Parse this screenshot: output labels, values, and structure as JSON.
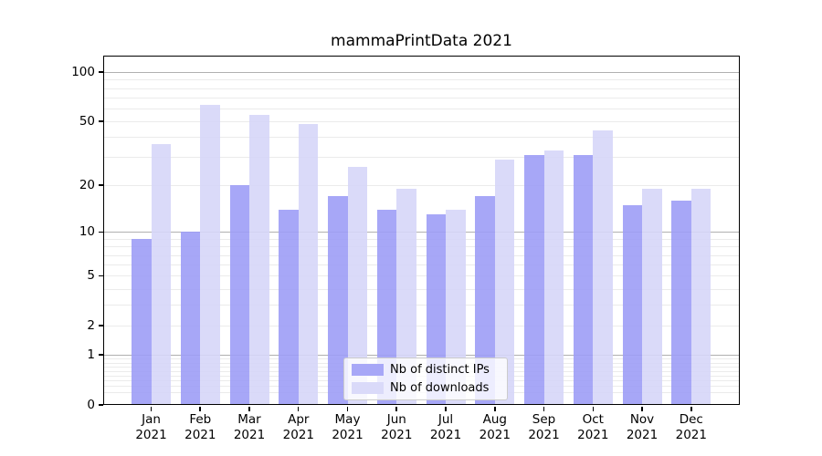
{
  "chart_data": {
    "type": "bar",
    "title": "mammaPrintData 2021",
    "categories": [
      "Jan",
      "Feb",
      "Mar",
      "Apr",
      "May",
      "Jun",
      "Jul",
      "Aug",
      "Sep",
      "Oct",
      "Nov",
      "Dec"
    ],
    "xlabel_year": "2021",
    "series": [
      {
        "name": "Nb of distinct IPs",
        "values": [
          9,
          10,
          20,
          14,
          17,
          14,
          13,
          17,
          31,
          31,
          15,
          16
        ]
      },
      {
        "name": "Nb of downloads",
        "values": [
          36,
          63,
          55,
          48,
          26,
          19,
          14,
          29,
          33,
          44,
          19,
          19
        ]
      }
    ],
    "yscale": "log(1+y)",
    "ylim": [
      0,
      127
    ],
    "yticks": [
      {
        "v": 0,
        "label": "0"
      },
      {
        "v": 1,
        "label": "1"
      },
      {
        "v": 2,
        "label": "2"
      },
      {
        "v": 5,
        "label": "5"
      },
      {
        "v": 10,
        "label": "10"
      },
      {
        "v": 20,
        "label": "20"
      },
      {
        "v": 50,
        "label": "50"
      },
      {
        "v": 100,
        "label": "100"
      }
    ],
    "minor_gridlines": [
      0.2,
      0.3,
      0.4,
      0.5,
      0.6,
      0.7,
      0.8,
      0.9,
      2,
      3,
      4,
      5,
      6,
      7,
      8,
      9,
      20,
      30,
      40,
      50,
      60,
      70,
      80,
      90
    ],
    "major_gridlines": [
      1,
      10,
      100
    ],
    "grid": true,
    "legend_position": "lower center",
    "colors": {
      "bar_distinct_ips": "rgba(157,157,246,0.9)",
      "bar_downloads": "rgba(214,214,248,0.9)",
      "swatch_distinct_ips": "#a7a7f7",
      "swatch_downloads": "#dadaf9",
      "minor_grid": "#ebebeb",
      "major_grid": "#b0b0b0",
      "spine": "#000000"
    }
  }
}
